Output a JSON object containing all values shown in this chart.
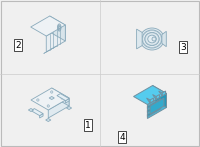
{
  "background_color": "#f0f0f0",
  "bg_inner": "#f5f5f5",
  "line_color": "#8aaabb",
  "line_color2": "#7090a0",
  "part4_fill": "#55ccee",
  "part4_dark": "#2299bb",
  "part4_mid": "#44bbdd",
  "label_fontsize": 6.5,
  "figsize": [
    2.0,
    1.47
  ],
  "dpi": 100,
  "border_color": "#bbbbbb",
  "divider_color": "#cccccc"
}
